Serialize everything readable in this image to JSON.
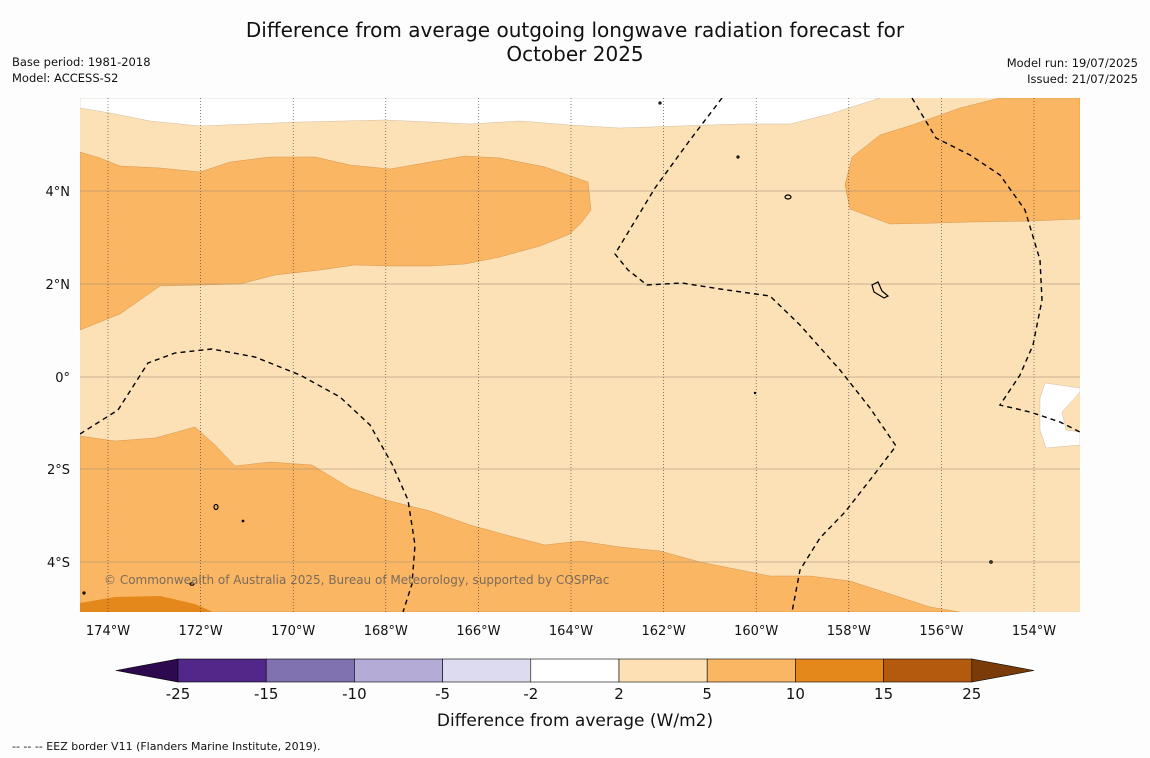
{
  "header": {
    "title_line1": "Difference from average outgoing longwave radiation forecast for",
    "title_line2": "October 2025",
    "base_period": "Base period: 1981-2018",
    "model": "Model: ACCESS-S2",
    "model_run": "Model run: 19/07/2025",
    "issued": "Issued: 21/07/2025"
  },
  "map": {
    "lon_labels": [
      "174°W",
      "172°W",
      "170°W",
      "168°W",
      "166°W",
      "164°W",
      "162°W",
      "160°W",
      "158°W",
      "156°W",
      "154°W"
    ],
    "lat_labels": [
      "4°N",
      "2°N",
      "0°",
      "2°S",
      "4°S"
    ],
    "copyright": "© Commonwealth of Australia 2025, Bureau of Meteorology, supported by COSPPac",
    "colors": {
      "c2_5": "#fce0b6",
      "c5_10": "#fbb664",
      "c10_15": "#e4881c",
      "c_neutral": "#ffffff"
    }
  },
  "colorbar": {
    "title": "Difference from average (W/m2)",
    "tick_labels": [
      "-25",
      "-15",
      "-10",
      "-5",
      "-2",
      "2",
      "5",
      "10",
      "15",
      "25"
    ],
    "colors": [
      "#2d0a4f",
      "#52278a",
      "#8071b0",
      "#b4abd6",
      "#dcdbef",
      "#ffffff",
      "#fde0b4",
      "#fbb664",
      "#e4881c",
      "#b35a0e",
      "#7a3b08"
    ]
  },
  "footnote": "--  --  -- EEZ border V11 (Flanders Marine Institute, 2019)."
}
